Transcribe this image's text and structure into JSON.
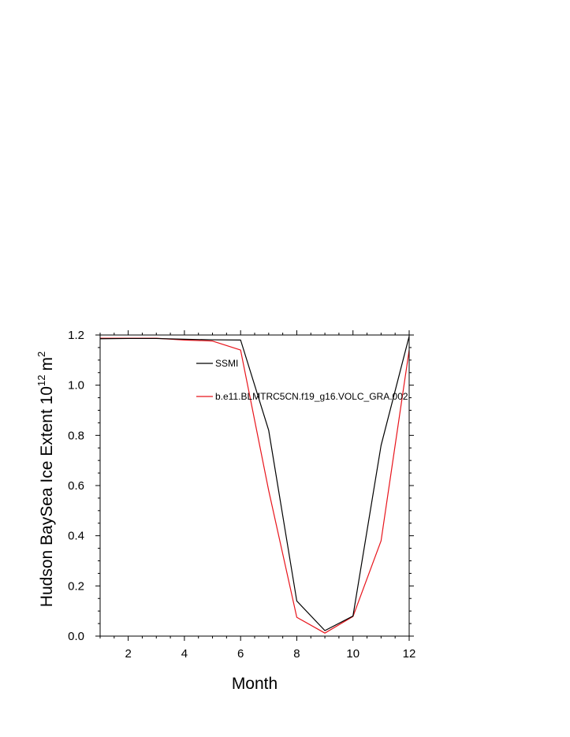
{
  "chart_data": {
    "type": "line",
    "xlabel": "Month",
    "ylabel": "Hudson BaySea Ice Extent 10",
    "ylabel_exponent": "12",
    "ylabel_unit": "m",
    "ylabel_unit_exponent": "2",
    "xlim": [
      1,
      12
    ],
    "ylim": [
      0.0,
      1.2
    ],
    "x_ticks": [
      2,
      4,
      6,
      8,
      10,
      12
    ],
    "y_ticks": [
      "0.0",
      "0.2",
      "0.4",
      "0.6",
      "0.8",
      "1.0",
      "1.2"
    ],
    "grid": false,
    "legend_placement": "top-center-inside",
    "x": [
      1,
      2,
      3,
      4,
      5,
      6,
      7,
      8,
      9,
      10,
      11,
      12
    ],
    "series": [
      {
        "name": "SSMI",
        "color": "#000000",
        "values": [
          1.185,
          1.186,
          1.186,
          1.183,
          1.181,
          1.18,
          0.82,
          0.14,
          0.022,
          0.08,
          0.76,
          1.195
        ]
      },
      {
        "name": "b.e11.BLMTRC5CN.f19_g16.VOLC_GRA.002",
        "color": "#e8141b",
        "values": [
          1.187,
          1.187,
          1.187,
          1.18,
          1.176,
          1.14,
          0.58,
          0.075,
          0.012,
          0.078,
          0.38,
          1.14
        ]
      }
    ]
  }
}
